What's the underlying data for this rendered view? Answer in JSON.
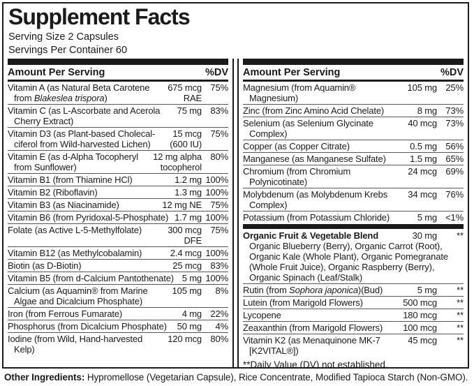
{
  "title": "Supplement Facts",
  "serving": {
    "size": "Serving Size 2 Capsules",
    "per_container": "Servings Per Container 60"
  },
  "header": {
    "amount_label": "Amount Per Serving",
    "dv_label": "%DV"
  },
  "columns": [
    {
      "sections": [
        {
          "rows": [
            {
              "name": [
                "Vitamin A (as Natural Beta Carotene from ",
                {
                  "i": "Blakeslea trispora"
                },
                ")"
              ],
              "amount": "675 mcg\nRAE",
              "dv": "75%"
            },
            {
              "name": [
                "Vitamin C (as L-Ascorbate and Acerola Cherry Extract)"
              ],
              "amount": "75 mg",
              "dv": "83%"
            },
            {
              "name": [
                "Vitamin D3 (as Plant-based Cholecal­ciferol from Wild-harvested Lichen)"
              ],
              "amount": "15 mcg\n(600 IU)",
              "dv": "75%"
            },
            {
              "name": [
                "Vitamin E (as d-Alpha Tocopheryl from Sunflower)"
              ],
              "amount": "12 mg alpha\ntocopherol",
              "dv": "80%"
            },
            {
              "name": [
                "Vitamin B1 (from Thiamine HCl)"
              ],
              "amount": "1.2 mg",
              "dv": "100%"
            },
            {
              "name": [
                "Vitamin B2 (Riboflavin)"
              ],
              "amount": "1.3 mg",
              "dv": "100%"
            },
            {
              "name": [
                "Vitamin B3 (as Niacinamide)"
              ],
              "amount": "12 mg NE",
              "dv": "75%"
            },
            {
              "name": [
                "Vitamin B6 (from Pyridoxal-5-Phosphate)"
              ],
              "amount": "1.7 mg",
              "dv": "100%"
            },
            {
              "name": [
                "Folate (as Active L-5-Methylfolate)"
              ],
              "amount": "300 mcg\nDFE",
              "dv": "75%"
            },
            {
              "name": [
                "Vitamin B12 (as Methylcobalamin)"
              ],
              "amount": "2.4 mcg",
              "dv": "100%"
            },
            {
              "name": [
                "Biotin (as D-Biotin)"
              ],
              "amount": "25 mcg",
              "dv": "83%"
            },
            {
              "name": [
                "Vitamin B5 (from d-Calcium Pantothenate)"
              ],
              "amount": "5 mg",
              "dv": "100%"
            },
            {
              "name": [
                "Calcium (as Aquamin® from Marine Algae and Dicalcium Phosphate)"
              ],
              "amount": "105 mg",
              "dv": "8%"
            },
            {
              "name": [
                "Iron (from Ferrous Fumarate)"
              ],
              "amount": "4 mg",
              "dv": "22%"
            },
            {
              "name": [
                "Phosphorus (from Dicalcium Phosphate)"
              ],
              "amount": "50 mg",
              "dv": "4%"
            },
            {
              "name": [
                "Iodine (from Wild, Hand-harvested Kelp)"
              ],
              "amount": "120 mcg",
              "dv": "80%"
            }
          ]
        }
      ]
    },
    {
      "sections": [
        {
          "rows": [
            {
              "name": [
                "Magnesium (from Aquamin® Magnesium)"
              ],
              "amount": "105 mg",
              "dv": "25%"
            },
            {
              "name": [
                "Zinc (from Zinc Amino Acid Chelate)"
              ],
              "amount": "8 mg",
              "dv": "73%"
            },
            {
              "name": [
                "Selenium (as Selenium Glycinate Complex)"
              ],
              "amount": "40 mcg",
              "dv": "73%"
            },
            {
              "name": [
                "Copper (as Copper Citrate)"
              ],
              "amount": "0.5 mg",
              "dv": "56%"
            },
            {
              "name": [
                "Manganese (as Manganese Sulfate)"
              ],
              "amount": "1.5 mg",
              "dv": "65%"
            },
            {
              "name": [
                "Chromium (from Chromium Polynicotinate)"
              ],
              "amount": "24 mcg",
              "dv": "69%"
            },
            {
              "name": [
                "Molybdenum (as Molybdenum Krebs Complex)"
              ],
              "amount": "34 mcg",
              "dv": "76%"
            },
            {
              "name": [
                "Potassium (from Potassium Chloride)"
              ],
              "amount": "5 mg",
              "dv": "<1%"
            }
          ]
        },
        {
          "rows": [
            {
              "bold": true,
              "name": [
                "Organic Fruit & Vegetable Blend"
              ],
              "amount": "30 mg",
              "dv": "**",
              "sub": "Organic Blueberry (Berry), Organic Carrot (Root), Organic Kale (Whole Plant), Organic Pomegranate (Whole Fruit Juice), Organic Raspberry (Berry), Organic Spinach (Leaf/Stalk)"
            },
            {
              "name": [
                "Rutin (from ",
                {
                  "i": "Sophora japonica"
                },
                ")(Bud)"
              ],
              "amount": "5 mg",
              "dv": "**"
            },
            {
              "name": [
                "Lutein (from Marigold Flowers)"
              ],
              "amount": "500 mcg",
              "dv": "**"
            },
            {
              "name": [
                "Lycopene"
              ],
              "amount": "180 mcg",
              "dv": "**"
            },
            {
              "name": [
                "Zeaxanthin (from Marigold Flowers)"
              ],
              "amount": "100 mcg",
              "dv": "**"
            },
            {
              "name": [
                "Vitamin K2 (as Menaquinone MK-7 [K2VITAL®])"
              ],
              "amount": "45 mcg",
              "dv": "**"
            }
          ]
        }
      ],
      "footnote": "**Daily Value (DV) not established."
    }
  ],
  "other_ingredients": {
    "label": "Other Ingredients:",
    "text": " Hypromellose (Vegetarian Capsule), Rice Concentrate, Modified Tapioca Starch (Non-GMO)."
  },
  "colors": {
    "text": "#1a1a1a",
    "background": "#ffffff",
    "row_divider": "#555555"
  }
}
